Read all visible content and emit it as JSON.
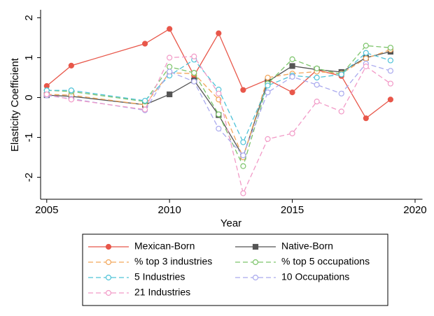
{
  "chart_data": {
    "type": "line",
    "x_label": "Year",
    "y_label": "Elasticity Coefficient",
    "x": [
      2005,
      2006,
      2009,
      2010,
      2011,
      2012,
      2013,
      2014,
      2015,
      2016,
      2017,
      2018,
      2019
    ],
    "xlim": [
      2004.75,
      2020.3
    ],
    "xticks": [
      2005,
      2010,
      2015,
      2020
    ],
    "ylim": [
      -2.55,
      2.2
    ],
    "yticks": [
      -2,
      -1,
      0,
      1,
      2
    ],
    "grid": false,
    "series": [
      {
        "name": "Mexican-Born",
        "color": "#e8574a",
        "marker": "circle",
        "filled": true,
        "dashed": false,
        "values": [
          0.29,
          0.8,
          1.35,
          1.72,
          0.55,
          1.61,
          0.19,
          0.45,
          0.13,
          0.69,
          0.54,
          -0.52,
          -0.05
        ]
      },
      {
        "name": "Native-Born",
        "color": "#555555",
        "marker": "square",
        "filled": true,
        "dashed": false,
        "values": [
          0.06,
          0.03,
          -0.18,
          0.08,
          0.43,
          -0.44,
          -1.48,
          0.4,
          0.79,
          0.7,
          0.64,
          1.0,
          1.15
        ]
      },
      {
        "name": "% top 3 industries",
        "color": "#f2a65a",
        "marker": "circle",
        "filled": false,
        "dashed": true,
        "values": [
          0.08,
          0.06,
          -0.18,
          0.62,
          0.6,
          -0.05,
          -1.5,
          0.5,
          0.6,
          0.65,
          0.6,
          0.98,
          1.2
        ]
      },
      {
        "name": "% top 5 occupations",
        "color": "#7cc46a",
        "marker": "circle",
        "filled": false,
        "dashed": true,
        "values": [
          0.18,
          0.15,
          -0.1,
          0.77,
          0.62,
          -0.42,
          -1.72,
          0.35,
          0.96,
          0.73,
          0.58,
          1.3,
          1.25
        ]
      },
      {
        "name": "5 Industries",
        "color": "#4fc3d8",
        "marker": "circle",
        "filled": false,
        "dashed": true,
        "values": [
          0.18,
          0.18,
          -0.08,
          0.55,
          0.95,
          0.2,
          -1.12,
          0.3,
          0.55,
          0.5,
          0.58,
          1.12,
          0.93
        ]
      },
      {
        "name": "10 Occupations",
        "color": "#a9a9ee",
        "marker": "circle",
        "filled": false,
        "dashed": true,
        "values": [
          0.05,
          -0.03,
          -0.32,
          0.65,
          0.4,
          -0.78,
          -1.45,
          0.13,
          0.52,
          0.32,
          0.1,
          0.85,
          0.67
        ]
      },
      {
        "name": "21 Industries",
        "color": "#f29ac7",
        "marker": "circle",
        "filled": false,
        "dashed": true,
        "values": [
          0.08,
          -0.05,
          -0.3,
          1.0,
          1.03,
          0.1,
          -2.4,
          -1.04,
          -0.9,
          -0.1,
          -0.35,
          0.78,
          0.35
        ]
      }
    ]
  }
}
